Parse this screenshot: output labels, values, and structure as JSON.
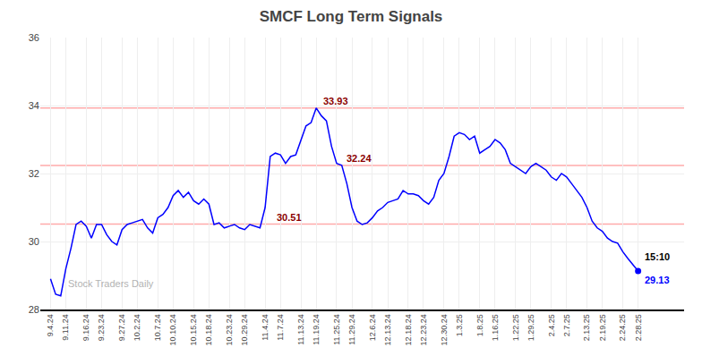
{
  "chart_data": {
    "type": "line",
    "title": "SMCF Long Term Signals",
    "categories": [
      "9.4.24",
      null,
      null,
      "9.11.24",
      null,
      null,
      null,
      "9.16.24",
      null,
      null,
      "9.23.24",
      null,
      null,
      null,
      "9.27.24",
      null,
      null,
      "10.2.24",
      null,
      null,
      null,
      "10.7.24",
      null,
      null,
      "10.10.24",
      null,
      null,
      null,
      "10.15.24",
      null,
      null,
      "10.18.24",
      null,
      null,
      null,
      "10.23.24",
      null,
      null,
      "10.29.24",
      null,
      null,
      null,
      "11.4.24",
      null,
      null,
      "11.7.24",
      null,
      null,
      null,
      "11.13.24",
      null,
      null,
      "11.19.24",
      null,
      null,
      null,
      "11.25.24",
      null,
      null,
      "11.29.24",
      null,
      null,
      null,
      "12.6.24",
      null,
      null,
      "12.13.24",
      null,
      null,
      null,
      "12.18.24",
      null,
      null,
      "12.23.24",
      null,
      null,
      null,
      "12.30.24",
      null,
      null,
      "1.3.25",
      null,
      null,
      null,
      "1.8.25",
      null,
      null,
      "1.16.25",
      null,
      null,
      null,
      "1.22.25",
      null,
      null,
      "1.29.25",
      null,
      null,
      null,
      "2.4.25",
      null,
      null,
      "2.7.25",
      null,
      null,
      null,
      "2.13.25",
      null,
      null,
      "2.19.25",
      null,
      null,
      null,
      "2.24.25",
      null,
      null,
      "2.28.25"
    ],
    "series": [
      {
        "color": "blue",
        "values": [
          28.9,
          28.45,
          28.4,
          29.2,
          29.8,
          30.5,
          30.6,
          30.45,
          30.1,
          30.5,
          30.5,
          30.2,
          30.0,
          29.9,
          30.35,
          30.5,
          30.55,
          30.6,
          30.65,
          30.4,
          30.25,
          30.7,
          30.8,
          31.0,
          31.35,
          31.5,
          31.3,
          31.45,
          31.2,
          31.1,
          31.25,
          31.1,
          30.5,
          30.55,
          30.4,
          30.45,
          30.5,
          30.4,
          30.35,
          30.5,
          30.45,
          30.4,
          31.0,
          32.5,
          32.6,
          32.55,
          32.3,
          32.5,
          32.55,
          33.0,
          33.4,
          33.5,
          33.93,
          33.7,
          33.55,
          32.8,
          32.3,
          32.24,
          31.7,
          31.0,
          30.6,
          30.5,
          30.55,
          30.7,
          30.9,
          31.0,
          31.15,
          31.2,
          31.25,
          31.5,
          31.4,
          31.4,
          31.35,
          31.2,
          31.1,
          31.3,
          31.8,
          32.0,
          32.5,
          33.1,
          33.2,
          33.15,
          33.0,
          33.1,
          32.6,
          32.7,
          32.8,
          33.0,
          32.9,
          32.7,
          32.3,
          32.2,
          32.1,
          32.0,
          32.2,
          32.3,
          32.2,
          32.1,
          31.9,
          31.8,
          32.0,
          31.9,
          31.7,
          31.5,
          31.3,
          31.0,
          30.6,
          30.4,
          30.3,
          30.1,
          30.0,
          29.95,
          29.7,
          29.5,
          29.3,
          29.13
        ]
      }
    ],
    "ylim": [
      28,
      36
    ],
    "yticks": [
      28,
      30,
      32,
      34,
      36
    ],
    "grid": true,
    "hlines": {
      "values": [
        30.51,
        32.24,
        33.93
      ],
      "color": "#ffaaaa"
    },
    "annotations": [
      {
        "text": "33.93",
        "x": 53,
        "y": 33.93,
        "color": "darkred"
      },
      {
        "text": "32.24",
        "x": 57.5,
        "y": 32.24,
        "color": "darkred"
      },
      {
        "text": "30.51",
        "x": 44,
        "y": 30.51,
        "color": "darkred"
      }
    ],
    "last_label": {
      "time": "15:10",
      "price": "29.13",
      "price_color": "blue"
    },
    "watermark": "Stock Traders Daily"
  }
}
